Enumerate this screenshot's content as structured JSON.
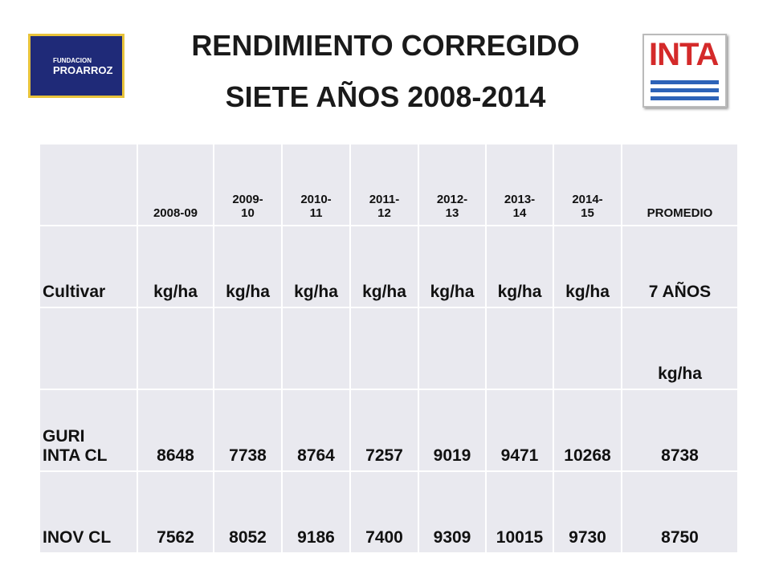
{
  "header": {
    "title_lines": [
      "RENDIMIENTO CORREGIDO",
      "SIETE AÑOS 2008-2014"
    ]
  },
  "logos": {
    "left": {
      "small": "FUNDACION",
      "big": "PROARROZ"
    },
    "right": {
      "text": "INTA"
    }
  },
  "table": {
    "rows": [
      [
        null,
        "2008-09",
        "2009-10",
        "2010-11",
        "2011-12",
        "2012-13",
        "2013-14",
        "2014-15",
        "PROMEDIO"
      ],
      [
        "Cultivar",
        "kg/ha",
        "kg/ha",
        "kg/ha",
        "kg/ha",
        "kg/ha",
        "kg/ha",
        "kg/ha",
        "7 AÑOS"
      ],
      [
        null,
        null,
        null,
        null,
        null,
        null,
        null,
        null,
        "kg/ha"
      ],
      [
        "GURI INTA CL",
        "8648",
        "7738",
        "8764",
        "7257",
        "9019",
        "9471",
        "10268",
        "8738"
      ],
      [
        "INOV CL",
        "7562",
        "8052",
        "9186",
        "7400",
        "9309",
        "10015",
        "9730",
        "8750"
      ]
    ]
  }
}
